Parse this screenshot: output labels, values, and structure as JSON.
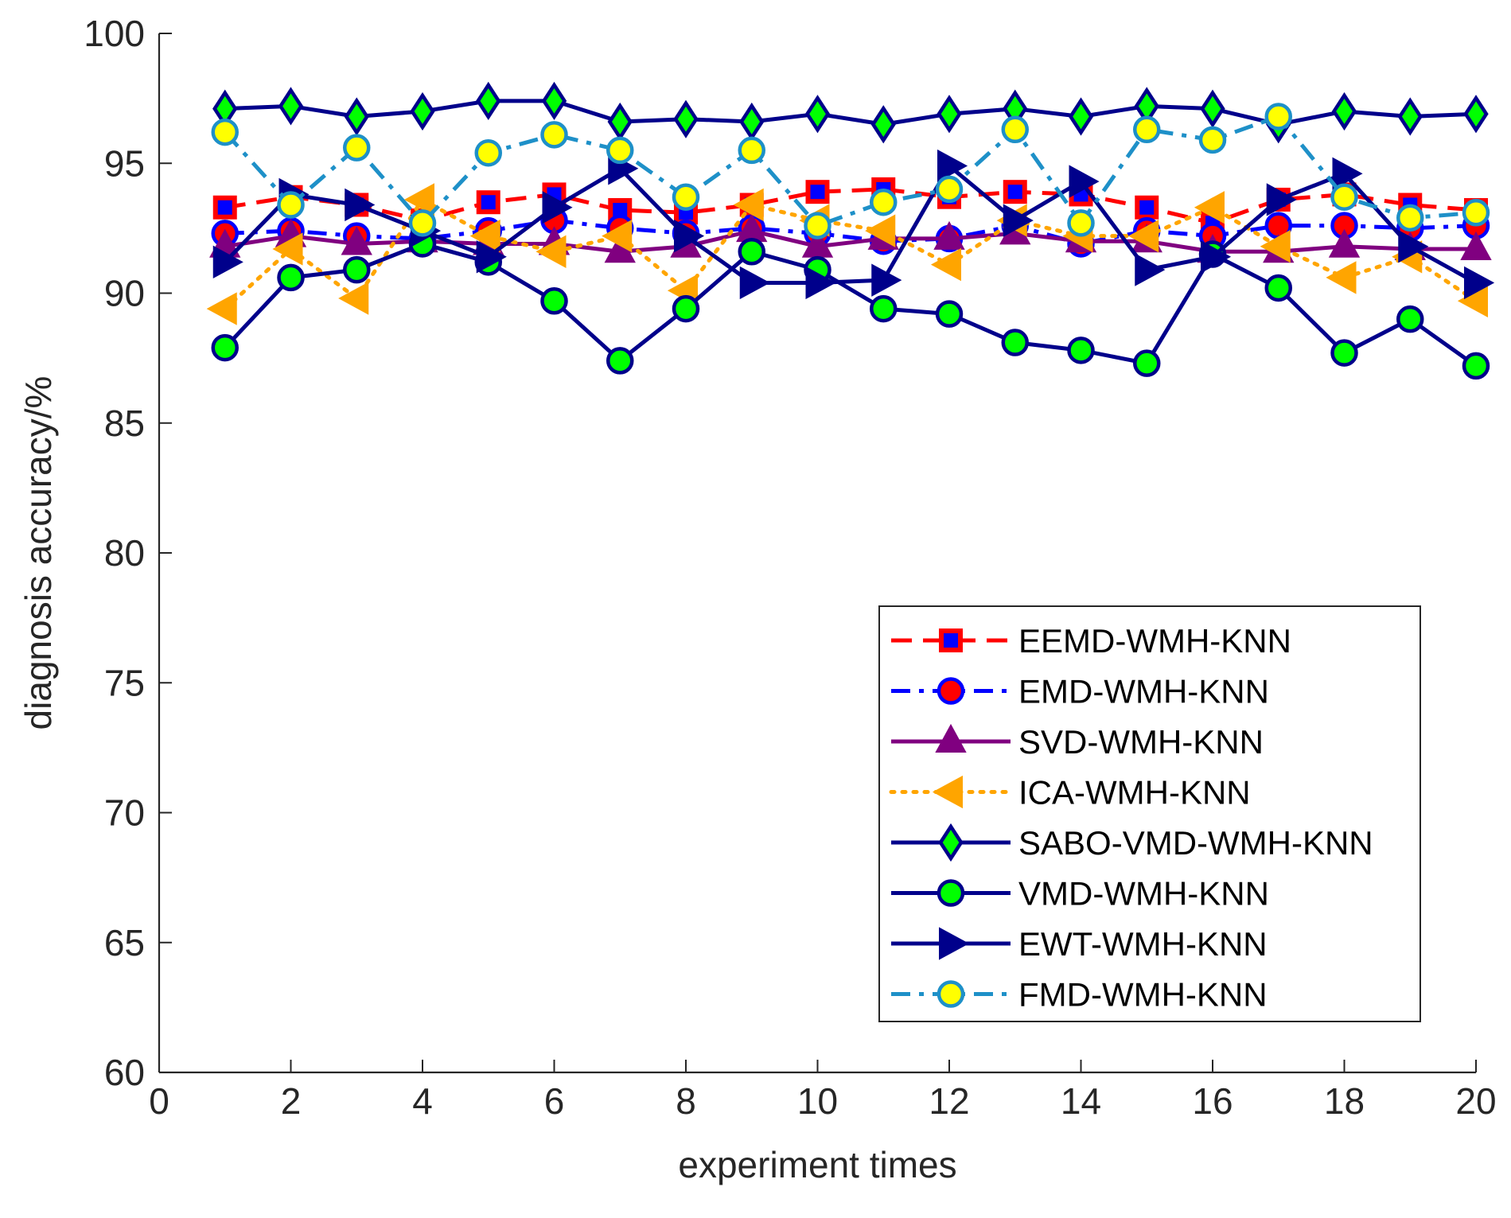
{
  "chart_data": {
    "type": "line",
    "title": "",
    "xlabel": "experiment times",
    "ylabel": "diagnosis accuracy/%",
    "xlim": [
      0,
      20
    ],
    "ylim": [
      60,
      100
    ],
    "xticks": [
      0,
      2,
      4,
      6,
      8,
      10,
      12,
      14,
      16,
      18,
      20
    ],
    "yticks": [
      60,
      65,
      70,
      75,
      80,
      85,
      90,
      95,
      100
    ],
    "legend_position": "bottom-right",
    "x": [
      1,
      2,
      3,
      4,
      5,
      6,
      7,
      8,
      9,
      10,
      11,
      12,
      13,
      14,
      15,
      16,
      17,
      18,
      19,
      20
    ],
    "series": [
      {
        "name": "EEMD-WMH-KNN",
        "line_color": "#ff0000",
        "marker_face": "#0000ff",
        "marker_edge": "#ff0000",
        "marker": "square",
        "dash": "dashed",
        "values": [
          93.3,
          93.7,
          93.4,
          92.8,
          93.5,
          93.8,
          93.2,
          93.1,
          93.4,
          93.9,
          94.0,
          93.7,
          93.9,
          93.8,
          93.3,
          92.7,
          93.6,
          93.8,
          93.4,
          93.2
        ]
      },
      {
        "name": "EMD-WMH-KNN",
        "line_color": "#0000ff",
        "marker_face": "#ff0000",
        "marker_edge": "#0000ff",
        "marker": "circle",
        "dash": "dashdot",
        "values": [
          92.3,
          92.4,
          92.2,
          92.1,
          92.4,
          92.8,
          92.5,
          92.3,
          92.5,
          92.3,
          92.0,
          92.1,
          92.6,
          91.9,
          92.4,
          92.2,
          92.6,
          92.6,
          92.5,
          92.6
        ]
      },
      {
        "name": "SVD-WMH-KNN",
        "line_color": "#800080",
        "marker_face": "#800080",
        "marker_edge": "#800080",
        "marker": "triangle-up",
        "dash": "solid",
        "values": [
          91.8,
          92.2,
          91.9,
          92.0,
          91.9,
          91.9,
          91.6,
          91.8,
          92.4,
          91.8,
          92.1,
          92.1,
          92.3,
          92.0,
          92.0,
          91.6,
          91.6,
          91.8,
          91.7,
          91.7
        ]
      },
      {
        "name": "ICA-WMH-KNN",
        "line_color": "#ffa500",
        "marker_face": "#ffa500",
        "marker_edge": "#ffa500",
        "marker": "triangle-left",
        "dash": "dotted",
        "values": [
          89.4,
          91.7,
          89.8,
          93.6,
          92.2,
          91.6,
          92.2,
          90.1,
          93.4,
          92.8,
          92.4,
          91.1,
          92.8,
          92.2,
          92.2,
          93.3,
          91.8,
          90.6,
          91.4,
          89.7
        ]
      },
      {
        "name": "SABO-VMD-WMH-KNN",
        "line_color": "#00008b",
        "marker_face": "#00ff00",
        "marker_edge": "#00008b",
        "marker": "diamond",
        "dash": "solid",
        "values": [
          97.1,
          97.2,
          96.8,
          97.0,
          97.4,
          97.4,
          96.6,
          96.7,
          96.6,
          96.9,
          96.5,
          96.9,
          97.1,
          96.8,
          97.2,
          97.1,
          96.5,
          97.0,
          96.8,
          96.9
        ]
      },
      {
        "name": "VMD-WMH-KNN",
        "line_color": "#00008b",
        "marker_face": "#00ff00",
        "marker_edge": "#00008b",
        "marker": "circle",
        "dash": "solid",
        "values": [
          87.9,
          90.6,
          90.9,
          91.9,
          91.2,
          89.7,
          87.4,
          89.4,
          91.6,
          90.9,
          89.4,
          89.2,
          88.1,
          87.8,
          87.3,
          91.5,
          90.2,
          87.7,
          89.0,
          87.2
        ]
      },
      {
        "name": "EWT-WMH-KNN",
        "line_color": "#00008b",
        "marker_face": "#00008b",
        "marker_edge": "#00008b",
        "marker": "triangle-right",
        "dash": "solid",
        "values": [
          91.2,
          93.8,
          93.4,
          92.4,
          91.4,
          93.3,
          94.8,
          92.2,
          90.4,
          90.4,
          90.5,
          94.9,
          92.8,
          94.3,
          90.9,
          91.4,
          93.6,
          94.6,
          91.8,
          90.4
        ]
      },
      {
        "name": "FMD-WMH-KNN",
        "line_color": "#1e90c8",
        "marker_face": "#ffff00",
        "marker_edge": "#1e90c8",
        "marker": "circle",
        "dash": "dashdot",
        "values": [
          96.2,
          93.4,
          95.6,
          92.7,
          95.4,
          96.1,
          95.5,
          93.7,
          95.5,
          92.6,
          93.5,
          94.0,
          96.3,
          92.7,
          96.3,
          95.9,
          96.8,
          93.7,
          92.9,
          93.1
        ]
      }
    ]
  }
}
